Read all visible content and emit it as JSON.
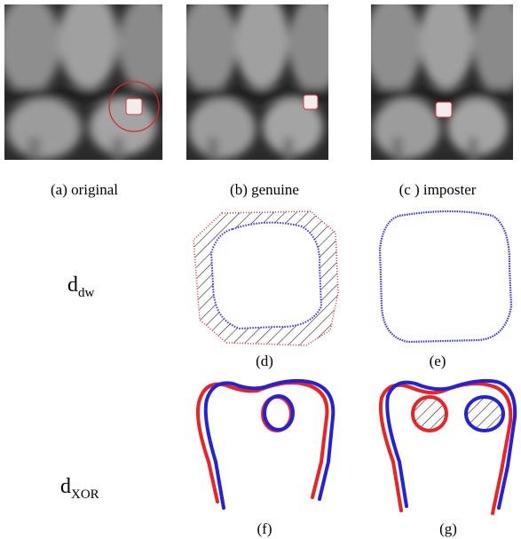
{
  "figure": {
    "panels": [
      {
        "caption": "(a) original"
      },
      {
        "caption": "(b) genuine"
      },
      {
        "caption": "(c ) imposter"
      }
    ],
    "rows": [
      {
        "symbol": "d",
        "subscript": "dw"
      },
      {
        "symbol": "d",
        "subscript": "XOR"
      }
    ],
    "subcaptions": [
      "(d)",
      "(e)",
      "(f)",
      "(g)"
    ]
  }
}
